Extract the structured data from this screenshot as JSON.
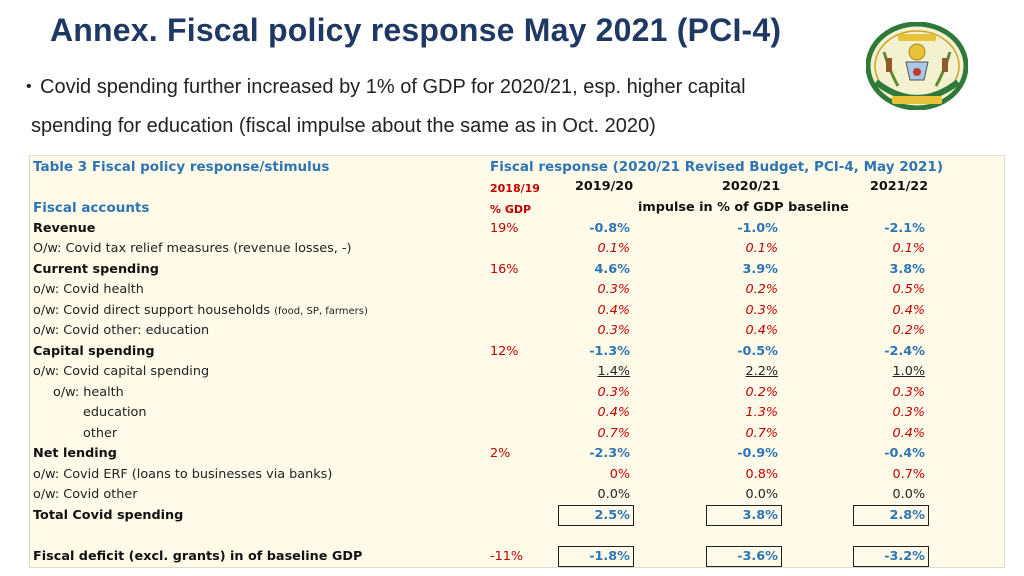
{
  "title": "Annex. Fiscal policy response May 2021 (PCI-4)",
  "bullet": {
    "line1": "Covid spending further increased by 1% of GDP for 2020/21, esp. higher capital",
    "line2": "spending for education (fiscal impulse about the same as in Oct. 2020)"
  },
  "emblem": {
    "icon": "rwanda-coat-of-arms-icon"
  },
  "table": {
    "title": "Table 3 Fiscal policy response/stimulus",
    "response_title": "Fiscal response (2020/21 Revised Budget, PCI-4,  May 2021)",
    "col_base": "2018/19",
    "col_base_unit": "% GDP",
    "years": [
      "2019/20",
      "2020/21",
      "2021/22"
    ],
    "impulse_label": "impulse in % of GDP baseline",
    "section_label": "Fiscal accounts",
    "rows": [
      {
        "label": "Revenue",
        "base": "19%",
        "v": [
          "-0.8%",
          "-1.0%",
          "-2.1%"
        ]
      },
      {
        "label": "O/w: Covid tax relief measures (revenue losses, -)",
        "base": "",
        "v": [
          "0.1%",
          "0.1%",
          "0.1%"
        ]
      },
      {
        "label": "Current spending",
        "base": "16%",
        "v": [
          "4.6%",
          "3.9%",
          "3.8%"
        ]
      },
      {
        "label": "o/w: Covid health",
        "base": "",
        "v": [
          "0.3%",
          "0.2%",
          "0.5%"
        ]
      },
      {
        "label": "o/w: Covid direct support households",
        "note": "(food, SP, farmers)",
        "base": "",
        "v": [
          "0.4%",
          "0.3%",
          "0.4%"
        ]
      },
      {
        "label": "o/w: Covid other: education",
        "base": "",
        "v": [
          "0.3%",
          "0.4%",
          "0.2%"
        ]
      },
      {
        "label": "Capital spending",
        "base": "12%",
        "v": [
          "-1.3%",
          "-0.5%",
          "-2.4%"
        ]
      },
      {
        "label": "o/w: Covid capital spending",
        "base": "",
        "v": [
          "1.4%",
          "2.2%",
          "1.0%"
        ]
      },
      {
        "label": "o/w: health",
        "base": "",
        "v": [
          "0.3%",
          "0.2%",
          "0.3%"
        ]
      },
      {
        "label": "education",
        "base": "",
        "v": [
          "0.4%",
          "1.3%",
          "0.3%"
        ]
      },
      {
        "label": "other",
        "base": "",
        "v": [
          "0.7%",
          "0.7%",
          "0.4%"
        ]
      },
      {
        "label": "Net lending",
        "base": "2%",
        "v": [
          "-2.3%",
          "-0.9%",
          "-0.4%"
        ]
      },
      {
        "label": "o/w: Covid ERF (loans to businesses via banks)",
        "base": "",
        "v": [
          "0%",
          "0.8%",
          "0.7%"
        ]
      },
      {
        "label": "o/w: Covid other",
        "base": "",
        "v": [
          "0.0%",
          "0.0%",
          "0.0%"
        ]
      },
      {
        "label": "Total Covid spending",
        "base": "",
        "v": [
          "2.5%",
          "3.8%",
          "2.8%"
        ]
      },
      {
        "label": "Fiscal deficit (excl. grants) in of baseline GDP",
        "base": "-11%",
        "v": [
          "-1.8%",
          "-3.6%",
          "-3.2%"
        ]
      }
    ]
  },
  "colors": {
    "title": "#1f3864",
    "header_blue": "#2e75b6",
    "red": "#c00000",
    "table_bg": "#fffbe8"
  }
}
